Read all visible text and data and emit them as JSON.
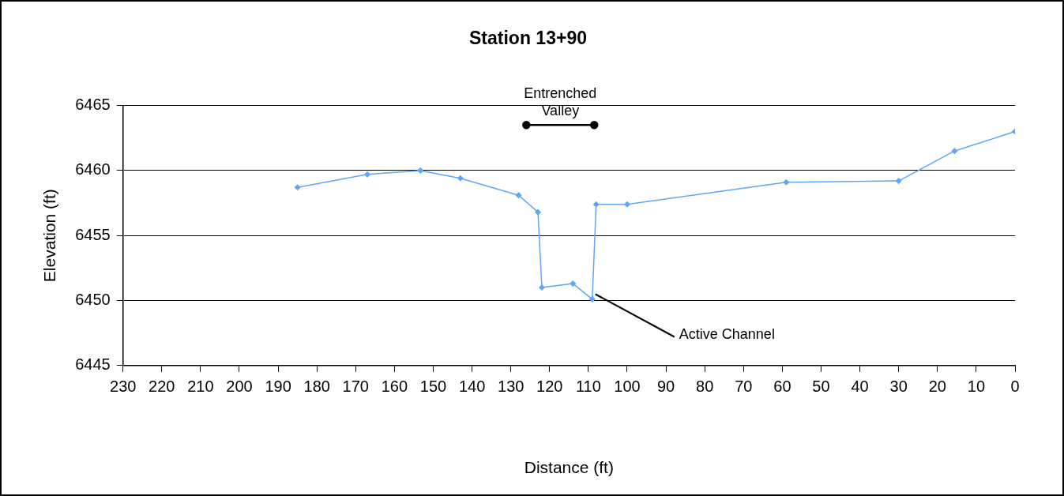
{
  "chart_data": {
    "type": "line",
    "title": "Station 13+90",
    "xlabel": "Distance (ft)",
    "ylabel": "Elevation (ft)",
    "xlim": [
      230,
      0
    ],
    "xticks": [
      230,
      220,
      210,
      200,
      190,
      180,
      170,
      160,
      150,
      140,
      130,
      120,
      110,
      100,
      90,
      80,
      70,
      60,
      50,
      40,
      30,
      20,
      10,
      0
    ],
    "ylim": [
      6445,
      6465
    ],
    "yticks": [
      6445,
      6450,
      6455,
      6460,
      6465
    ],
    "grid": "y",
    "legend": false,
    "marker": "diamond",
    "line_style": "solid",
    "series": [
      {
        "color": "#5ea7f5",
        "x": [
          185,
          167,
          153.3,
          143,
          128,
          123,
          122,
          114,
          109,
          108,
          100,
          59,
          30,
          15.6,
          0
        ],
        "values": [
          6458.7,
          6459.7,
          6460,
          6459.4,
          6458.1,
          6456.8,
          6451,
          6451.3,
          6450.1,
          6457.4,
          6457.4,
          6459.1,
          6459.2,
          6461.5,
          6463
        ]
      },
      {
        "name": "Entrenched Valley",
        "color": "#000000",
        "marker": "circle",
        "x": [
          126,
          108.5
        ],
        "values": [
          6463.5,
          6463.5
        ]
      }
    ],
    "annotations": [
      {
        "text": "Active Channel",
        "x": 109,
        "y": 6450
      }
    ]
  }
}
